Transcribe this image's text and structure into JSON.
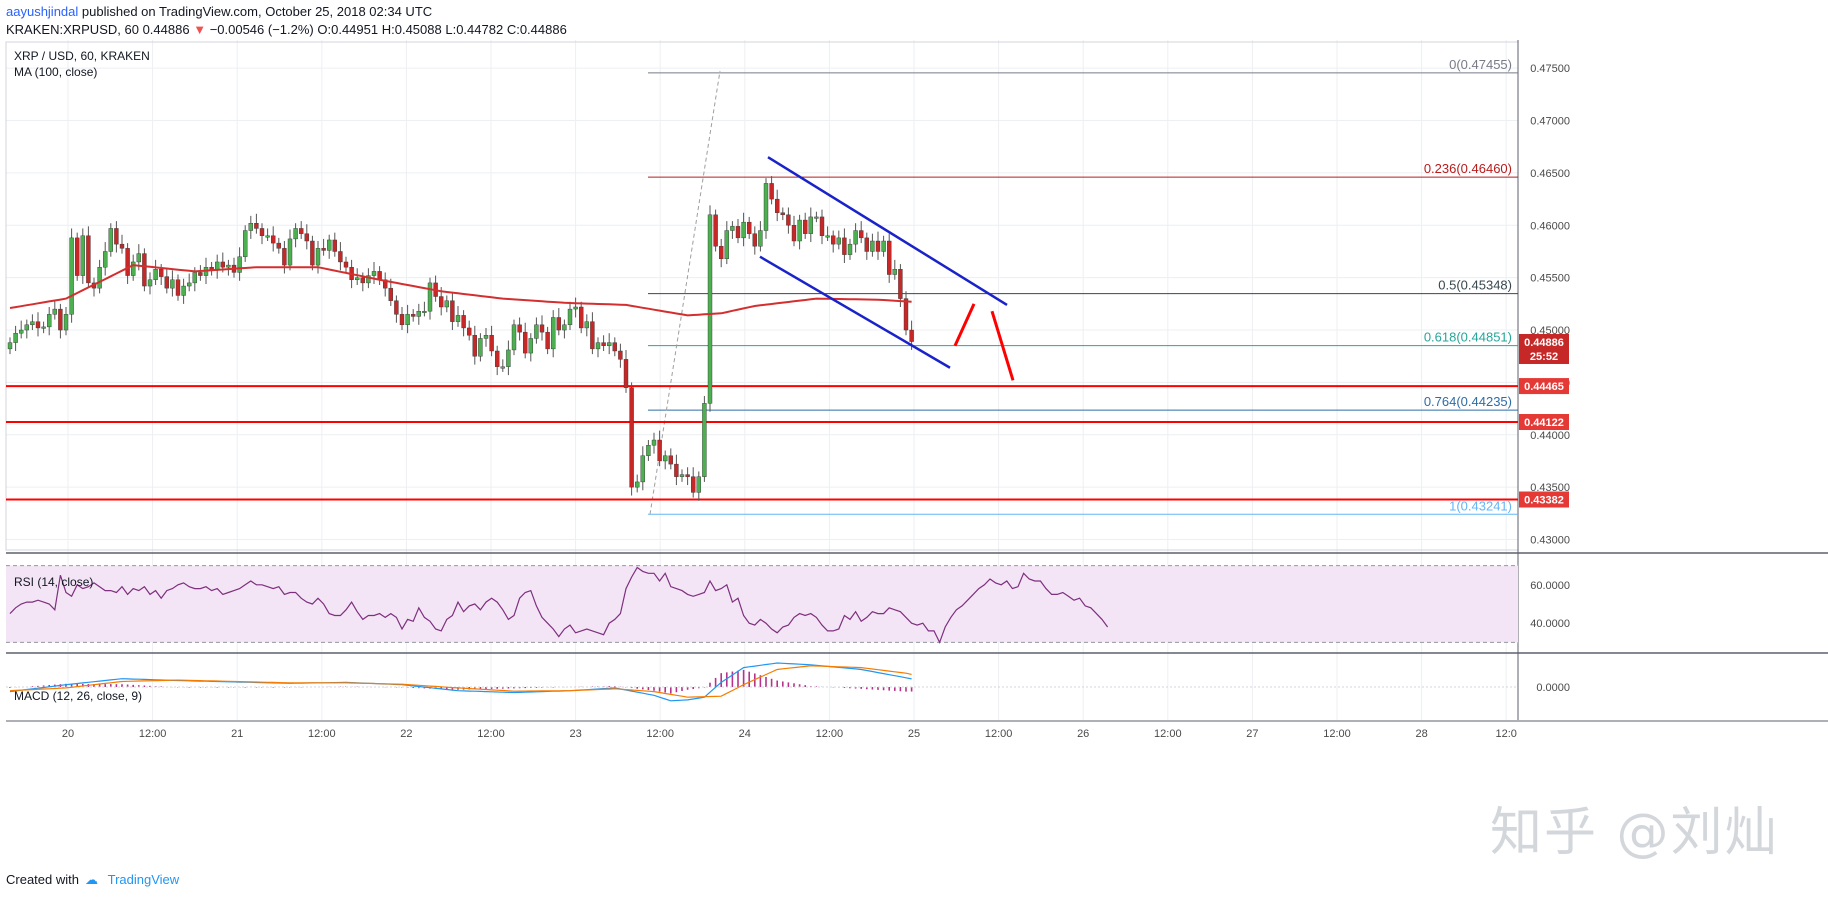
{
  "header": {
    "author": "aayushjindal",
    "published_text": " published on TradingView.com, October 25, 2018 02:34 UTC",
    "symbol_line": "KRAKEN:XRPUSD, 60",
    "change_text": "−0.00546 (−1.2%)",
    "ohlc": {
      "o": "O:0.44951",
      "h": "H:0.45088",
      "l": "L:0.44782",
      "c": "C:0.44886"
    }
  },
  "footer": {
    "created_with": "Created with",
    "brand": "TradingView"
  },
  "watermark": "知乎 @刘灿",
  "colors": {
    "up": "#4caf50",
    "down": "#c62828",
    "ma": "#d32f2f",
    "channel": "#1a23c9",
    "support": "#ff0000",
    "rsi": "#7e2f7e",
    "rsi_band": "#f3e5f5",
    "macd": "#2196f3",
    "signal": "#f57c00",
    "hist": "#b5338a"
  },
  "chart_data": [
    {
      "type": "candlestick",
      "title": "XRP / USD, 60, KRAKEN",
      "indicator": "MA (100, close)",
      "ylim": [
        0.429,
        0.4775
      ],
      "y_ticks": [
        "0.47500",
        "0.47000",
        "0.46500",
        "0.46000",
        "0.45500",
        "0.45000",
        "0.44500",
        "0.44000",
        "0.43500",
        "0.43000"
      ],
      "x_tick_labels": [
        "20",
        "12:00",
        "21",
        "12:00",
        "22",
        "12:00",
        "23",
        "12:00",
        "24",
        "12:00",
        "25",
        "12:00",
        "26",
        "12:00",
        "27",
        "12:00",
        "28",
        "12:0"
      ],
      "closes": [
        0.4488,
        0.4497,
        0.45,
        0.4505,
        0.4508,
        0.4502,
        0.4503,
        0.4515,
        0.452,
        0.45,
        0.4515,
        0.4588,
        0.4552,
        0.459,
        0.4545,
        0.454,
        0.456,
        0.4575,
        0.4597,
        0.4582,
        0.4578,
        0.4552,
        0.4565,
        0.4573,
        0.4542,
        0.4548,
        0.4558,
        0.4551,
        0.454,
        0.4548,
        0.4533,
        0.4542,
        0.4545,
        0.4555,
        0.4552,
        0.456,
        0.4557,
        0.4565,
        0.456,
        0.4562,
        0.4555,
        0.457,
        0.4595,
        0.4602,
        0.4597,
        0.459,
        0.459,
        0.4583,
        0.4578,
        0.4562,
        0.4587,
        0.4597,
        0.4592,
        0.4585,
        0.4562,
        0.4578,
        0.4576,
        0.4586,
        0.4575,
        0.4565,
        0.456,
        0.4548,
        0.455,
        0.4545,
        0.4552,
        0.4556,
        0.4548,
        0.454,
        0.4528,
        0.4515,
        0.4505,
        0.4515,
        0.4513,
        0.4518,
        0.4518,
        0.4545,
        0.4532,
        0.4522,
        0.4528,
        0.4508,
        0.4514,
        0.4502,
        0.4495,
        0.4475,
        0.4492,
        0.4495,
        0.448,
        0.4465,
        0.4465,
        0.4481,
        0.4505,
        0.4498,
        0.4478,
        0.4492,
        0.4505,
        0.4498,
        0.4482,
        0.4512,
        0.45,
        0.4505,
        0.452,
        0.4522,
        0.4502,
        0.4508,
        0.4482,
        0.4488,
        0.4485,
        0.4488,
        0.448,
        0.4472,
        0.4445,
        0.435,
        0.4355,
        0.438,
        0.439,
        0.4395,
        0.4375,
        0.438,
        0.4372,
        0.436,
        0.4362,
        0.436,
        0.4345,
        0.436,
        0.443,
        0.461,
        0.458,
        0.4568,
        0.4595,
        0.4599,
        0.4588,
        0.4603,
        0.4592,
        0.458,
        0.4595,
        0.464,
        0.4625,
        0.4612,
        0.461,
        0.46,
        0.4585,
        0.4605,
        0.4592,
        0.4608,
        0.4608,
        0.459,
        0.459,
        0.4582,
        0.4588,
        0.4572,
        0.4582,
        0.4595,
        0.4588,
        0.4575,
        0.4585,
        0.4575,
        0.4585,
        0.4553,
        0.4558,
        0.453,
        0.45,
        0.4489
      ],
      "ma100_anchors": [
        [
          0,
          0.4521
        ],
        [
          10,
          0.453
        ],
        [
          22,
          0.4562
        ],
        [
          33,
          0.4556
        ],
        [
          44,
          0.456
        ],
        [
          55,
          0.456
        ],
        [
          66,
          0.4548
        ],
        [
          77,
          0.4537
        ],
        [
          88,
          0.453
        ],
        [
          99,
          0.4526
        ],
        [
          110,
          0.4524
        ],
        [
          121,
          0.4514
        ],
        [
          127,
          0.4516
        ],
        [
          133,
          0.4523
        ],
        [
          144,
          0.453
        ],
        [
          155,
          0.4529
        ],
        [
          161,
          0.4527
        ],
        [
          166,
          0.4527
        ]
      ],
      "fib_levels": [
        {
          "label": "0(0.47455)",
          "value": 0.47455,
          "color": "#787b86"
        },
        {
          "label": "0.236(0.46460)",
          "value": 0.4646,
          "color": "#b71c1c"
        },
        {
          "label": "0.5(0.45348)",
          "value": 0.45348,
          "color": "#37474f"
        },
        {
          "label": "0.618(0.44851)",
          "value": 0.44851,
          "color": "#26a69a"
        },
        {
          "label": "0.764(0.44235)",
          "value": 0.44235,
          "color": "#2e6da4"
        },
        {
          "label": "1(0.43241)",
          "value": 0.43241,
          "color": "#64b5f6"
        }
      ],
      "support_lines": [
        {
          "label": "0.44465",
          "value": 0.44465
        },
        {
          "label": "0.44122",
          "value": 0.44122
        },
        {
          "label": "0.43382",
          "value": 0.43382
        }
      ],
      "last_price": {
        "label": "0.44886",
        "value": 0.44886,
        "countdown": "25:52"
      }
    },
    {
      "type": "line",
      "title": "RSI (14, close)",
      "ylim": [
        25,
        75
      ],
      "y_ticks": [
        "60.0000",
        "40.0000"
      ],
      "band": [
        30,
        70
      ],
      "series": [
        {
          "values": [
            45,
            48,
            50,
            51,
            51,
            52,
            51,
            50,
            47,
            65,
            56,
            54,
            60,
            58,
            59,
            61,
            59,
            57,
            57,
            56,
            59,
            55,
            58,
            57,
            59,
            55,
            57,
            53,
            57,
            58,
            60,
            61,
            59,
            58,
            58,
            59,
            57,
            58,
            55,
            56,
            57,
            58,
            60,
            62,
            60,
            60,
            59,
            58,
            59,
            55,
            56,
            56,
            53,
            51,
            50,
            53,
            50,
            45,
            44,
            44,
            47,
            51,
            46,
            42,
            44,
            44,
            45,
            43,
            45,
            43,
            37,
            42,
            41,
            48,
            43,
            41,
            37,
            36,
            42,
            44,
            51,
            46,
            49,
            50,
            47,
            51,
            53,
            51,
            47,
            42,
            44,
            53,
            56,
            57,
            49,
            43,
            40,
            37,
            33,
            37,
            39,
            35,
            36,
            37,
            36,
            35,
            34,
            40,
            42,
            45,
            58,
            64,
            69,
            67,
            66,
            66,
            62,
            66,
            59,
            58,
            57,
            55,
            54,
            55,
            56,
            62,
            57,
            58,
            60,
            51,
            53,
            44,
            40,
            39,
            42,
            40,
            37,
            35,
            38,
            39,
            43,
            45,
            44,
            45,
            43,
            39,
            36,
            36,
            37,
            44,
            42,
            46,
            41,
            43,
            46,
            45,
            45,
            48,
            47,
            46,
            43,
            40,
            39,
            40,
            36,
            36,
            30,
            38,
            43,
            47,
            49,
            52,
            55,
            58,
            60,
            63,
            61,
            60,
            62,
            58,
            59,
            66,
            63,
            62,
            62,
            58,
            55,
            55,
            56,
            54,
            52,
            53,
            49,
            48,
            45,
            42,
            38
          ]
        }
      ]
    },
    {
      "type": "line",
      "title": "MACD (12, 26, close, 9)",
      "y_ticks": [
        "0.0000"
      ],
      "series": [
        {
          "name": "MACD",
          "anchors": [
            [
              0,
              -0.001
            ],
            [
              10,
              0.0005
            ],
            [
              20,
              0.0018
            ],
            [
              30,
              0.0014
            ],
            [
              40,
              0.0011
            ],
            [
              50,
              0.0008
            ],
            [
              60,
              0.001
            ],
            [
              70,
              0.0005
            ],
            [
              80,
              -0.0008
            ],
            [
              90,
              -0.0012
            ],
            [
              100,
              -0.0008
            ],
            [
              108,
              -0.0002
            ],
            [
              115,
              -0.0018
            ],
            [
              118,
              -0.003
            ],
            [
              121,
              -0.0028
            ],
            [
              124,
              -0.0022
            ],
            [
              127,
              0.001
            ],
            [
              131,
              0.0042
            ],
            [
              137,
              0.0052
            ],
            [
              143,
              0.0048
            ],
            [
              152,
              0.0038
            ],
            [
              160,
              0.002
            ],
            [
              166,
              0.0005
            ]
          ]
        },
        {
          "name": "Signal",
          "anchors": [
            [
              0,
              -0.0008
            ],
            [
              10,
              -0.0002
            ],
            [
              20,
              0.0012
            ],
            [
              30,
              0.0015
            ],
            [
              40,
              0.0012
            ],
            [
              50,
              0.0009
            ],
            [
              60,
              0.0009
            ],
            [
              70,
              0.0006
            ],
            [
              80,
              -0.0002
            ],
            [
              90,
              -0.0009
            ],
            [
              100,
              -0.0008
            ],
            [
              108,
              -0.0004
            ],
            [
              115,
              -0.001
            ],
            [
              121,
              -0.0022
            ],
            [
              127,
              -0.002
            ],
            [
              131,
              0.0005
            ],
            [
              137,
              0.0038
            ],
            [
              143,
              0.0046
            ],
            [
              152,
              0.0042
            ],
            [
              160,
              0.003
            ],
            [
              166,
              0.0014
            ]
          ]
        }
      ],
      "histogram": {
        "name": "Histogram"
      }
    }
  ]
}
